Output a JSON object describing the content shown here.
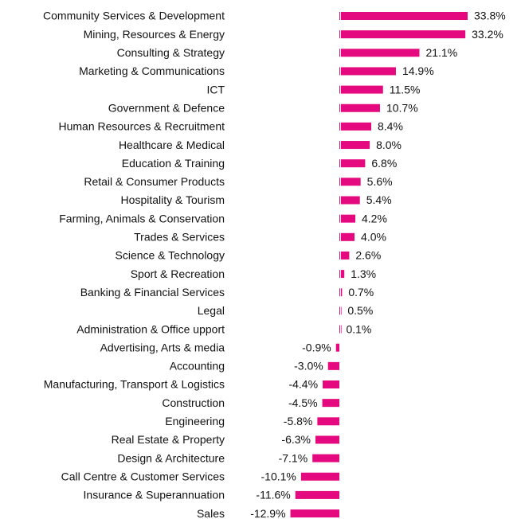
{
  "chart_data": {
    "type": "bar",
    "orientation": "horizontal",
    "color": "#e5097f",
    "categories": [
      "Community Services & Development",
      "Mining, Resources & Energy",
      "Consulting & Strategy",
      "Marketing & Communications",
      "ICT",
      "Government & Defence",
      "Human Resources & Recruitment",
      "Healthcare & Medical",
      "Education & Training",
      "Retail & Consumer Products",
      "Hospitality & Tourism",
      "Farming, Animals & Conservation",
      "Trades & Services",
      "Science & Technology",
      "Sport & Recreation",
      "Banking & Financial Services",
      "Legal",
      "Administration & Office upport",
      "Advertising, Arts & media",
      "Accounting",
      "Manufacturing, Transport & Logistics",
      "Construction",
      "Engineering",
      "Real Estate & Property",
      "Design & Architecture",
      "Call Centre & Customer Services",
      "Insurance & Superannuation",
      "Sales"
    ],
    "values": [
      33.8,
      33.2,
      21.1,
      14.9,
      11.5,
      10.7,
      8.4,
      8.0,
      6.8,
      5.6,
      5.4,
      4.2,
      4.0,
      2.6,
      1.3,
      0.7,
      0.5,
      0.1,
      -0.9,
      -3.0,
      -4.4,
      -4.5,
      -5.8,
      -6.3,
      -7.1,
      -10.1,
      -11.6,
      -12.9
    ],
    "value_labels": [
      "33.8%",
      "33.2%",
      "21.1%",
      "14.9%",
      "11.5%",
      "10.7%",
      "8.4%",
      "8.0%",
      "6.8%",
      "5.6%",
      "5.4%",
      "4.2%",
      "4.0%",
      "2.6%",
      "1.3%",
      "0.7%",
      "0.5%",
      "0.1%",
      "-0.9%",
      "-3.0%",
      "-4.4%",
      "-4.5%",
      "-5.8%",
      "-6.3%",
      "-7.1%",
      "-10.1%",
      "-11.6%",
      "-12.9%"
    ]
  }
}
